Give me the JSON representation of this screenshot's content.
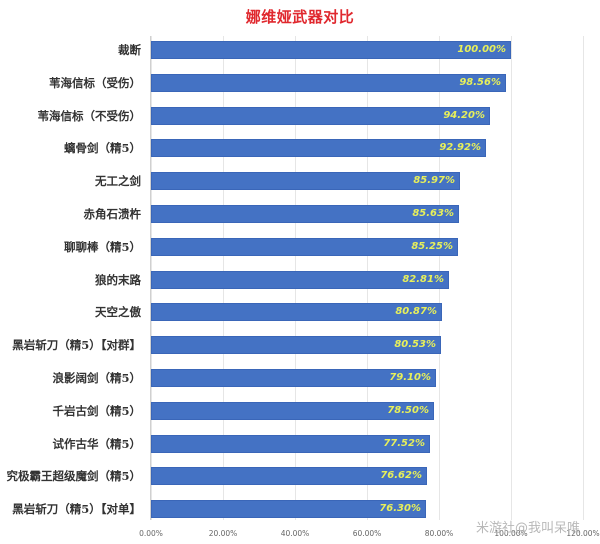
{
  "chart_data": {
    "type": "bar",
    "orientation": "horizontal",
    "title": "娜维娅武器对比",
    "xlabel": "",
    "ylabel": "",
    "xlim": [
      0,
      1.2
    ],
    "grid": true,
    "legend": null,
    "x_ticks": [
      "0.00%",
      "20.00%",
      "40.00%",
      "60.00%",
      "80.00%",
      "100.00%",
      "120.00%"
    ],
    "categories": [
      "裁断",
      "苇海信标（受伤）",
      "苇海信标（不受伤）",
      "螭骨剑（精5）",
      "无工之剑",
      "赤角石溃杵",
      "聊聊棒（精5）",
      "狼的末路",
      "天空之傲",
      "黑岩斩刀（精5）【对群】",
      "浪影阔剑（精5）",
      "千岩古剑（精5）",
      "试作古华（精5）",
      "究极霸王超级魔剑（精5）",
      "黑岩斩刀（精5）【对单】"
    ],
    "values": [
      1.0,
      0.9856,
      0.942,
      0.9292,
      0.8597,
      0.8563,
      0.8525,
      0.8281,
      0.8087,
      0.8053,
      0.791,
      0.785,
      0.7752,
      0.7662,
      0.763
    ],
    "value_labels": [
      "100.00%",
      "98.56%",
      "94.20%",
      "92.92%",
      "85.97%",
      "85.63%",
      "85.25%",
      "82.81%",
      "80.87%",
      "80.53%",
      "79.10%",
      "78.50%",
      "77.52%",
      "76.62%",
      "76.30%"
    ],
    "colors": {
      "bar": "#4472c4",
      "label": "#e8f05a",
      "title": "#e0282e"
    }
  },
  "watermark": "米游社@我叫呆唯"
}
